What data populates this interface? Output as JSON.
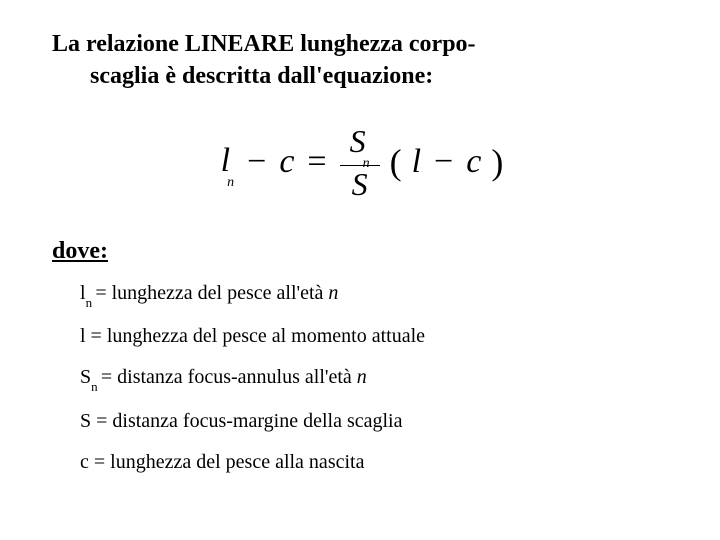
{
  "heading": {
    "line1": "La relazione LINEARE lunghezza corpo-",
    "line2": "scaglia è descritta dall'equazione:"
  },
  "equation": {
    "l": "l",
    "n": "n",
    "minus": "−",
    "c": "c",
    "eq": "=",
    "S": "S",
    "lparen": "(",
    "rparen": ")"
  },
  "dove": "dove:",
  "defs": {
    "d1_pre": "l",
    "d1_sub": "n ",
    "d1_rest": "= lunghezza del pesce all'età ",
    "d1_ital": "n",
    "d2": "l = lunghezza del pesce al momento attuale",
    "d3_pre": "S",
    "d3_sub": "n ",
    "d3_rest": "= distanza focus-annulus all'età ",
    "d3_ital": "n",
    "d4": "S = distanza focus-margine della scaglia",
    "d5": "c = lunghezza del pesce alla nascita"
  },
  "style": {
    "background": "#ffffff",
    "text_color": "#000000",
    "heading_fontsize": 24,
    "equation_fontsize": 34,
    "def_fontsize": 20
  }
}
